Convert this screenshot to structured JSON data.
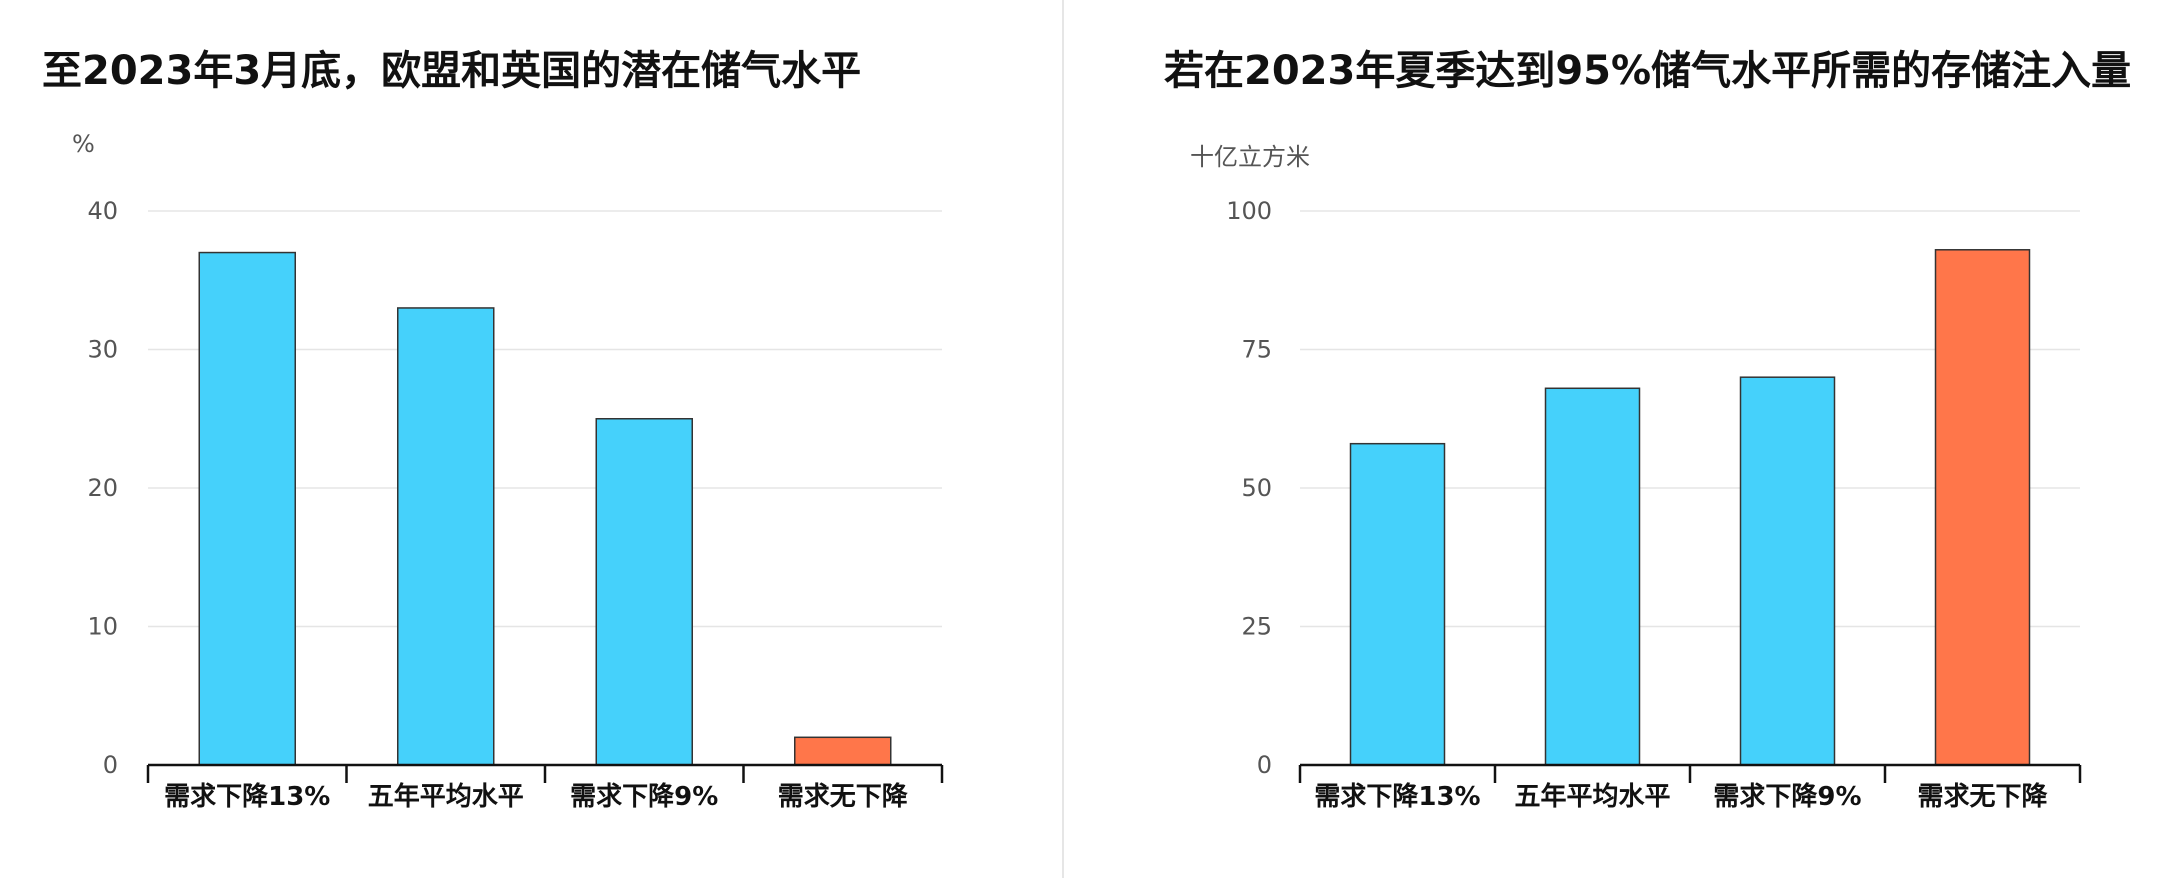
{
  "colors": {
    "blue": "#45D1FB",
    "orange": "#FF764A",
    "grid": "#e5e5e5",
    "axis": "#111111",
    "bar_stroke": "#333333"
  },
  "chart_data": [
    {
      "type": "bar",
      "title": "至2023年3月底，欧盟和英国的潜在储气水平",
      "ylabel": "%",
      "categories": [
        "需求下降13%",
        "五年平均水平",
        "需求下降9%",
        "需求无下降"
      ],
      "values": [
        37,
        33,
        25,
        2
      ],
      "bar_colors": [
        "#45D1FB",
        "#45D1FB",
        "#45D1FB",
        "#FF764A"
      ],
      "ylim": [
        0,
        40
      ],
      "yticks": [
        0,
        10,
        20,
        30,
        40
      ],
      "grid": true,
      "legend": "none"
    },
    {
      "type": "bar",
      "title": "若在2023年夏季达到95%储气水平所需的存储注入量",
      "ylabel": "十亿立方米",
      "categories": [
        "需求下降13%",
        "五年平均水平",
        "需求下降9%",
        "需求无下降"
      ],
      "values": [
        58,
        68,
        70,
        93
      ],
      "bar_colors": [
        "#45D1FB",
        "#45D1FB",
        "#45D1FB",
        "#FF764A"
      ],
      "ylim": [
        0,
        100
      ],
      "yticks": [
        0,
        25,
        50,
        75,
        100
      ],
      "grid": true,
      "legend": "none"
    }
  ]
}
